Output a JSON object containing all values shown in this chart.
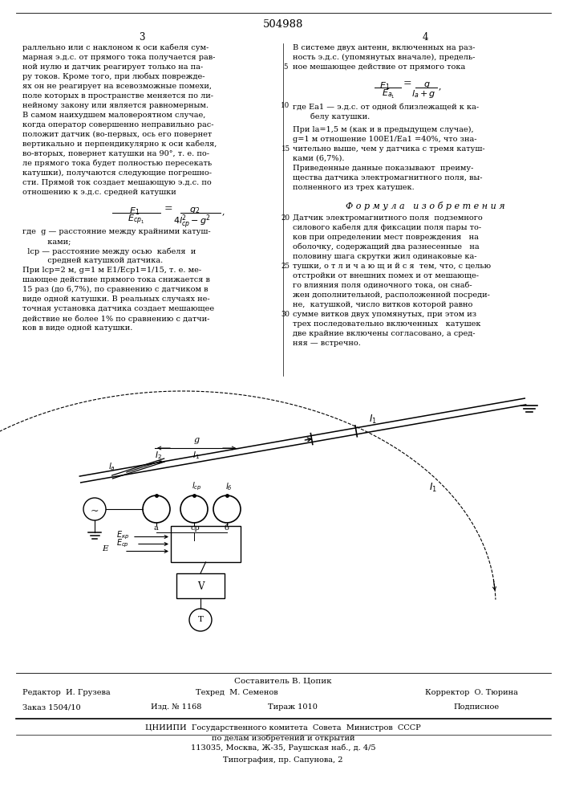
{
  "patent_number": "504988",
  "page_left": "3",
  "page_right": "4",
  "bg_color": "#ffffff",
  "fs_body": 7.0,
  "fs_page": 8.5,
  "fs_patent": 9.5,
  "col1_text": [
    "раллельно или с наклоном к оси кабеля сум-",
    "марная э.д.с. от прямого тока получается рав-",
    "ной нулю и датчик реагирует только на па-",
    "ру токов. Кроме того, при любых поврежде-",
    "ях он не реагирует на всевозможные помехи,",
    "поле которых в пространстве меняется по ли-",
    "нейному закону или является равномерным.",
    "В самом наихудшем маловероятном случае,",
    "когда оператор совершенно неправильно рас-",
    "положит датчик (во-первых, ось его повернет",
    "вертикально и перпендикулярно к оси кабеля,",
    "во-вторых, повернет катушки на 90°, т. е. по-",
    "ле прямого тока будет полностью пересекать",
    "катушки), получаются следующие погрешно-",
    "сти. Прямой ток создает мешающую э.д.с. по",
    "отношению к э.д.с. средней катушки"
  ],
  "col1_text2": [
    "где  g — расстояние между крайними катуш-",
    "          ками;",
    "  lср — расстояние между осью  кабеля  и",
    "          средней катушкой датчика.",
    "При lср=2 м, g=1 м E1/Eср1=1/15, т. е. ме-",
    "шающее действие прямого тока снижается в",
    "15 раз (до 6,7%), по сравнению с датчиком в",
    "виде одной катушки. В реальных случаях не-",
    "точная установка датчика создает мешающее",
    "действие не более 1% по сравнению с датчи-",
    "ков в виде одной катушки."
  ],
  "col2_text": [
    "В системе двух антенн, включенных на раз-",
    "ность э.д.с. (упомянутых вначале), предель-",
    "ное мешающее действие от прямого тока"
  ],
  "col2_label1": "где Ea1 — э.д.с. от одной близлежащей к ка-",
  "col2_label2": "       белу катушки.",
  "col2_text2": [
    "При la=1,5 м (как и в предыдущем случае),",
    "g=1 м отношение 100E1/Ea1 =40%, что зна-",
    "чительно выше, чем у датчика с тремя катуш-",
    "ками (6,7%).",
    "Приведенные данные показывают  преиму-",
    "щества датчика электромагнитного поля, вы-",
    "полненного из трех катушек."
  ],
  "formula_title": "Ф о р м у л а   и з о б р е т е н и я",
  "patent_claim": [
    "Датчик электромагнитного поля  подземного",
    "силового кабеля для фиксации поля пары то-",
    "ков при определении мест повреждения   на",
    "оболочку, содержащий два разнесенные   на",
    "половину шага скрутки жил одинаковые ка-",
    "тушки, о т л и ч а ю щ и й с я  тем, что, с целью",
    "отстройки от внешних помех и от мешающе-",
    "го влияния поля одиночного тока, он снаб-",
    "жен дополнительной, расположенной посреди-",
    "не,  катушкой, число витков которой равно",
    "сумме витков двух упомянутых, при этом из",
    "трех последовательно включенных   катушек",
    "две крайние включены согласовано, а сред-",
    "няя — встречно."
  ],
  "footer_composer": "Составитель В. Цопик",
  "footer_editor": "Редактор  И. Грузева",
  "footer_techred": "Техред  М. Семенов",
  "footer_corrector": "Корректор  О. Тюрина",
  "footer_order": "Заказ 1504/10",
  "footer_izd": "Изд. № 1168",
  "footer_tirazh": "Тираж 1010",
  "footer_podp": "Подписное",
  "footer_cniippi": "ЦНИИПИ  Государственного комитета  Совета  Министров  СССР",
  "footer_by": "по делам изобретений и открытий",
  "footer_addr": "113035, Москва, Ж-35, Раушская наб., д. 4/5",
  "footer_typo": "Типография, пр. Сапунова, 2"
}
